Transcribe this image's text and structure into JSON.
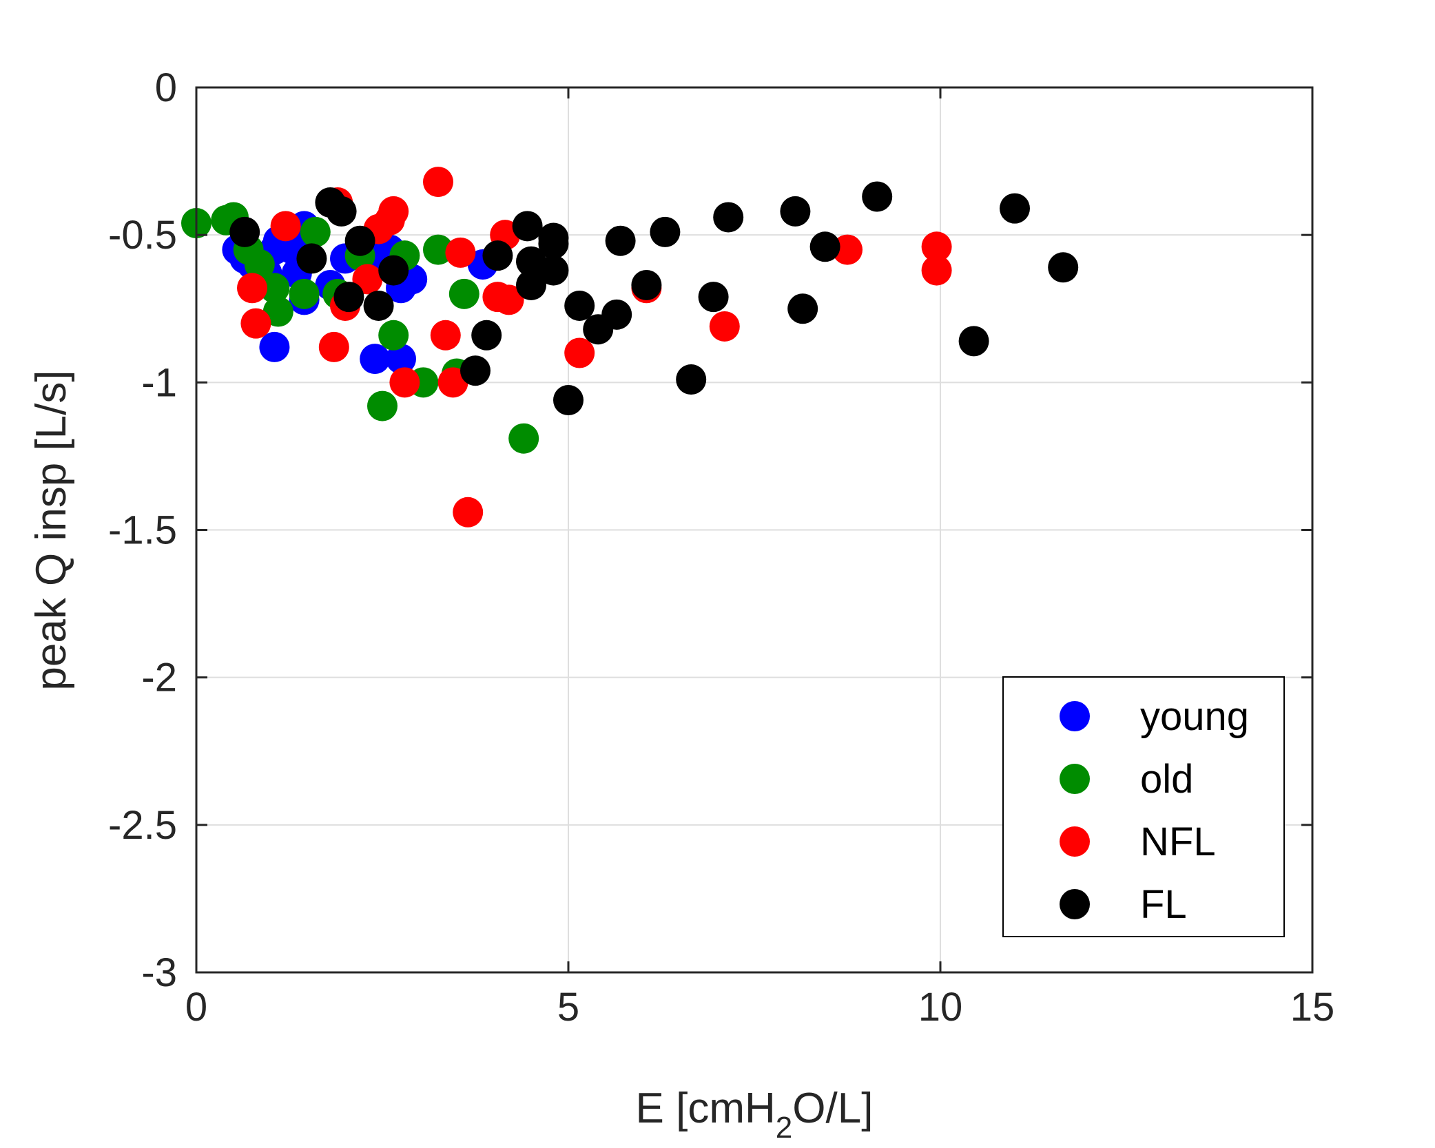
{
  "chart_data": {
    "type": "scatter",
    "xlabel": "E [cmH2O/L]",
    "xlabel_parts": {
      "pre": "E [cmH",
      "sub": "2",
      "post": "O/L]"
    },
    "ylabel": "peak Q insp [L/s]",
    "xlim": [
      0,
      15
    ],
    "ylim": [
      -3,
      0
    ],
    "xticks": [
      0,
      5,
      10,
      15
    ],
    "xtick_labels": [
      "0",
      "5",
      "10",
      "15"
    ],
    "yticks": [
      0,
      -0.5,
      -1,
      -1.5,
      -2,
      -2.5,
      -3
    ],
    "ytick_labels": [
      "0",
      "-0.5",
      "-1",
      "-1.5",
      "-2",
      "-2.5",
      "-3"
    ],
    "grid": true,
    "legend_position": "bottom-right",
    "series": [
      {
        "name": "young",
        "color": "#0000ff",
        "points": [
          [
            0.55,
            -0.55
          ],
          [
            0.65,
            -0.58
          ],
          [
            0.75,
            -0.6
          ],
          [
            0.95,
            -0.63
          ],
          [
            1.05,
            -0.55
          ],
          [
            1.1,
            -0.52
          ],
          [
            1.35,
            -0.5
          ],
          [
            1.45,
            -0.47
          ],
          [
            1.3,
            -0.55
          ],
          [
            1.35,
            -0.63
          ],
          [
            1.45,
            -0.72
          ],
          [
            1.8,
            -0.67
          ],
          [
            2.0,
            -0.58
          ],
          [
            2.2,
            -0.55
          ],
          [
            2.4,
            -0.58
          ],
          [
            2.6,
            -0.55
          ],
          [
            2.75,
            -0.68
          ],
          [
            2.9,
            -0.65
          ],
          [
            3.85,
            -0.6
          ],
          [
            2.4,
            -0.92
          ],
          [
            2.75,
            -0.92
          ],
          [
            1.05,
            -0.88
          ]
        ]
      },
      {
        "name": "old",
        "color": "#008c00",
        "points": [
          [
            0.0,
            -0.46
          ],
          [
            0.4,
            -0.45
          ],
          [
            0.5,
            -0.44
          ],
          [
            0.7,
            -0.55
          ],
          [
            0.85,
            -0.6
          ],
          [
            1.05,
            -0.68
          ],
          [
            1.1,
            -0.76
          ],
          [
            1.45,
            -0.7
          ],
          [
            1.6,
            -0.49
          ],
          [
            1.9,
            -0.7
          ],
          [
            2.2,
            -0.57
          ],
          [
            2.65,
            -0.84
          ],
          [
            2.8,
            -0.57
          ],
          [
            3.25,
            -0.55
          ],
          [
            3.6,
            -0.7
          ],
          [
            3.5,
            -0.97
          ],
          [
            3.05,
            -1.0
          ],
          [
            2.5,
            -1.08
          ],
          [
            4.4,
            -1.19
          ]
        ]
      },
      {
        "name": "NFL",
        "color": "#ff0000",
        "points": [
          [
            0.75,
            -0.68
          ],
          [
            0.8,
            -0.8
          ],
          [
            1.2,
            -0.47
          ],
          [
            1.9,
            -0.39
          ],
          [
            2.0,
            -0.74
          ],
          [
            2.3,
            -0.65
          ],
          [
            2.45,
            -0.48
          ],
          [
            2.6,
            -0.45
          ],
          [
            2.65,
            -0.42
          ],
          [
            1.85,
            -0.88
          ],
          [
            2.8,
            -1.0
          ],
          [
            3.25,
            -0.32
          ],
          [
            3.35,
            -0.84
          ],
          [
            3.45,
            -1.0
          ],
          [
            3.55,
            -0.56
          ],
          [
            3.65,
            -1.44
          ],
          [
            4.05,
            -0.71
          ],
          [
            4.15,
            -0.5
          ],
          [
            4.2,
            -0.72
          ],
          [
            5.15,
            -0.9
          ],
          [
            6.05,
            -0.68
          ],
          [
            7.1,
            -0.81
          ],
          [
            8.75,
            -0.55
          ],
          [
            9.95,
            -0.54
          ],
          [
            9.95,
            -0.62
          ]
        ]
      },
      {
        "name": "FL",
        "color": "#000000",
        "points": [
          [
            0.65,
            -0.49
          ],
          [
            1.55,
            -0.58
          ],
          [
            1.8,
            -0.39
          ],
          [
            1.95,
            -0.42
          ],
          [
            2.05,
            -0.71
          ],
          [
            2.2,
            -0.52
          ],
          [
            2.45,
            -0.74
          ],
          [
            2.65,
            -0.62
          ],
          [
            3.75,
            -0.96
          ],
          [
            3.9,
            -0.84
          ],
          [
            4.05,
            -0.57
          ],
          [
            4.45,
            -0.47
          ],
          [
            4.5,
            -0.59
          ],
          [
            4.5,
            -0.67
          ],
          [
            4.8,
            -0.51
          ],
          [
            4.8,
            -0.53
          ],
          [
            4.8,
            -0.62
          ],
          [
            5.0,
            -1.06
          ],
          [
            5.15,
            -0.74
          ],
          [
            5.4,
            -0.82
          ],
          [
            5.65,
            -0.77
          ],
          [
            5.7,
            -0.52
          ],
          [
            6.05,
            -0.67
          ],
          [
            6.3,
            -0.49
          ],
          [
            6.65,
            -0.99
          ],
          [
            6.95,
            -0.71
          ],
          [
            7.15,
            -0.44
          ],
          [
            8.05,
            -0.42
          ],
          [
            8.15,
            -0.75
          ],
          [
            8.45,
            -0.54
          ],
          [
            9.15,
            -0.37
          ],
          [
            10.45,
            -0.86
          ],
          [
            11.0,
            -0.41
          ],
          [
            11.65,
            -0.61
          ]
        ]
      }
    ]
  }
}
